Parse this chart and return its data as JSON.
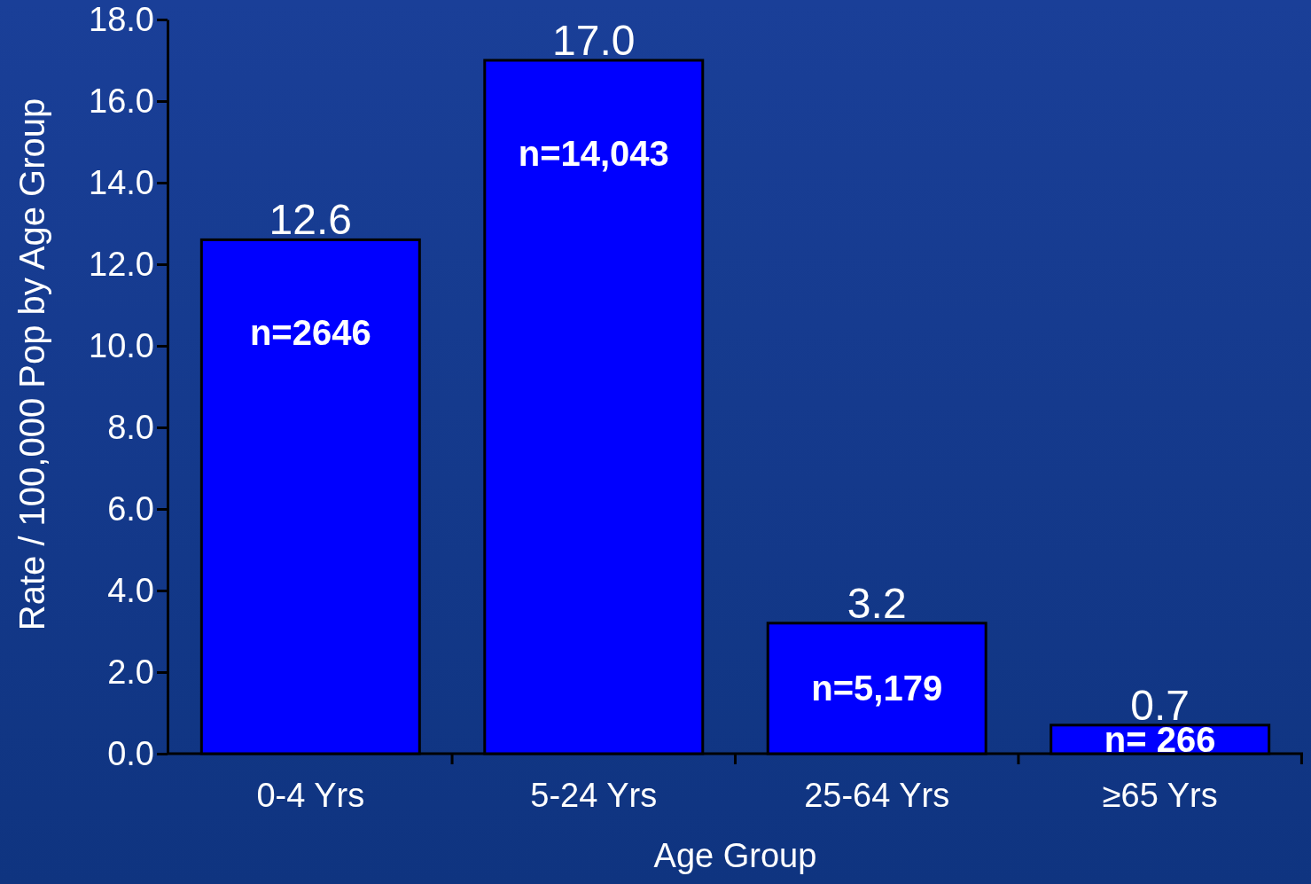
{
  "chart_data": {
    "type": "bar",
    "xlabel": "Age Group",
    "ylabel": "Rate / 100,000 Pop by Age Group",
    "categories": [
      "0-4 Yrs",
      "5-24 Yrs",
      "25-64 Yrs",
      "≥65  Yrs"
    ],
    "values": [
      12.6,
      17.0,
      3.2,
      0.7
    ],
    "color": "#0000ff",
    "value_labels": [
      "12.6",
      "17.0",
      "3.2",
      "0.7"
    ],
    "ylim": [
      0,
      18
    ],
    "yticks": [
      {
        "value": 0,
        "label": "0.0"
      },
      {
        "value": 2,
        "label": "2.0"
      },
      {
        "value": 4,
        "label": "4.0"
      },
      {
        "value": 6,
        "label": "6.0"
      },
      {
        "value": 8,
        "label": "8.0"
      },
      {
        "value": 10,
        "label": "10.0"
      },
      {
        "value": 12,
        "label": "12.0"
      },
      {
        "value": 14,
        "label": "14.0"
      },
      {
        "value": 16,
        "label": "16.0"
      },
      {
        "value": 18,
        "label": "18.0"
      }
    ],
    "annotations": [
      "n=2646",
      "n=14,043",
      "n=5,179",
      "n= 266"
    ]
  }
}
